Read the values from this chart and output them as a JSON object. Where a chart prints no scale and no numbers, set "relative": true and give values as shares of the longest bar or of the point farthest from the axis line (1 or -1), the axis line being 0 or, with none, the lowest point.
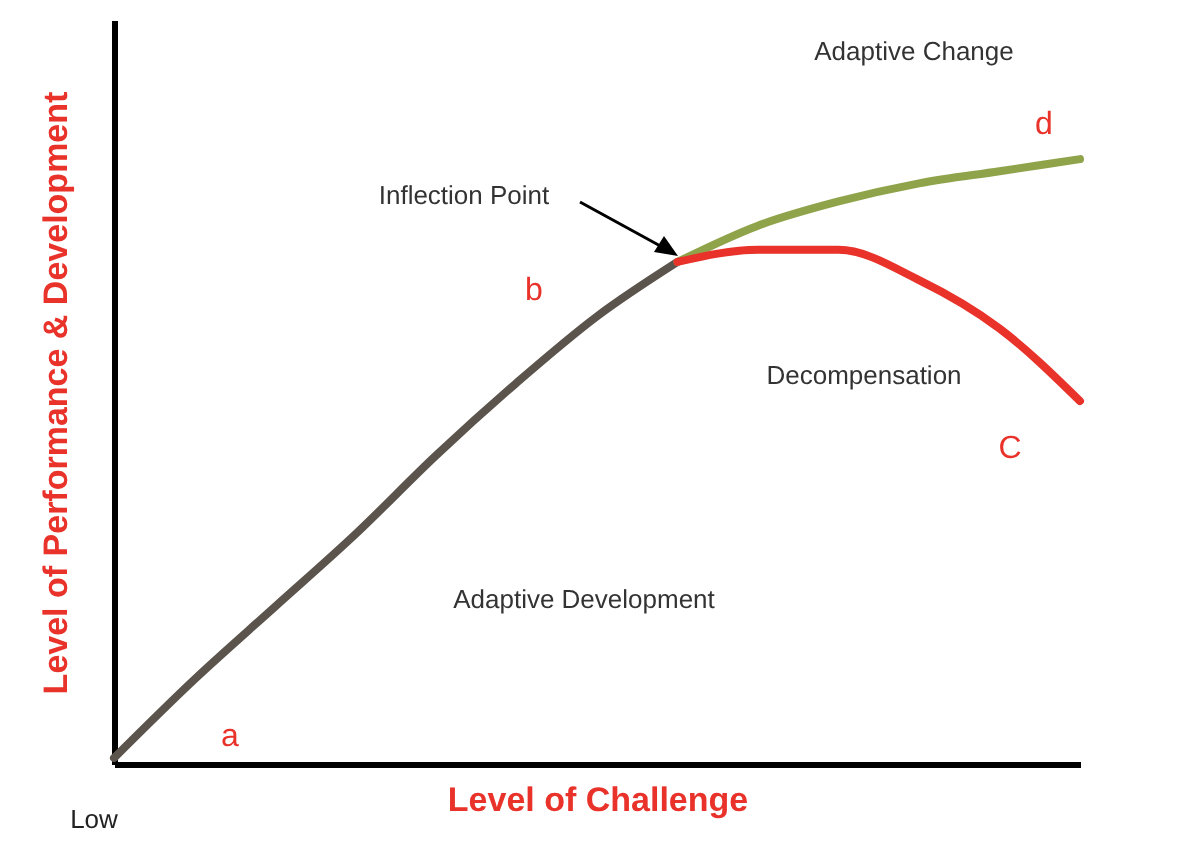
{
  "chart_data": {
    "type": "line",
    "relative": true,
    "xlabel": "Level of Challenge",
    "ylabel": "Level of Performance & Development",
    "categories": [
      null,
      null,
      null,
      null,
      null,
      null,
      null,
      null,
      null,
      null,
      null,
      null,
      null
    ],
    "series": [
      {
        "color": "#5b544c",
        "values": [
          0.01,
          0.14,
          0.26,
          0.38,
          0.51,
          0.63,
          0.74,
          0.83,
          null,
          null,
          null,
          null,
          null
        ]
      },
      {
        "color": "#8fa34a",
        "values": [
          null,
          null,
          null,
          null,
          null,
          null,
          null,
          0.83,
          0.89,
          0.93,
          0.96,
          0.98,
          1.0
        ]
      },
      {
        "color": "#e8322a",
        "values": [
          null,
          null,
          null,
          null,
          null,
          null,
          null,
          0.83,
          0.85,
          0.85,
          0.8,
          0.72,
          0.6
        ]
      }
    ],
    "annotations": [
      "Inflection Point",
      "Adaptive Change",
      "Decompensation",
      "Adaptive Development",
      "a",
      "b",
      "C",
      "d",
      "Low"
    ],
    "grid": false
  }
}
